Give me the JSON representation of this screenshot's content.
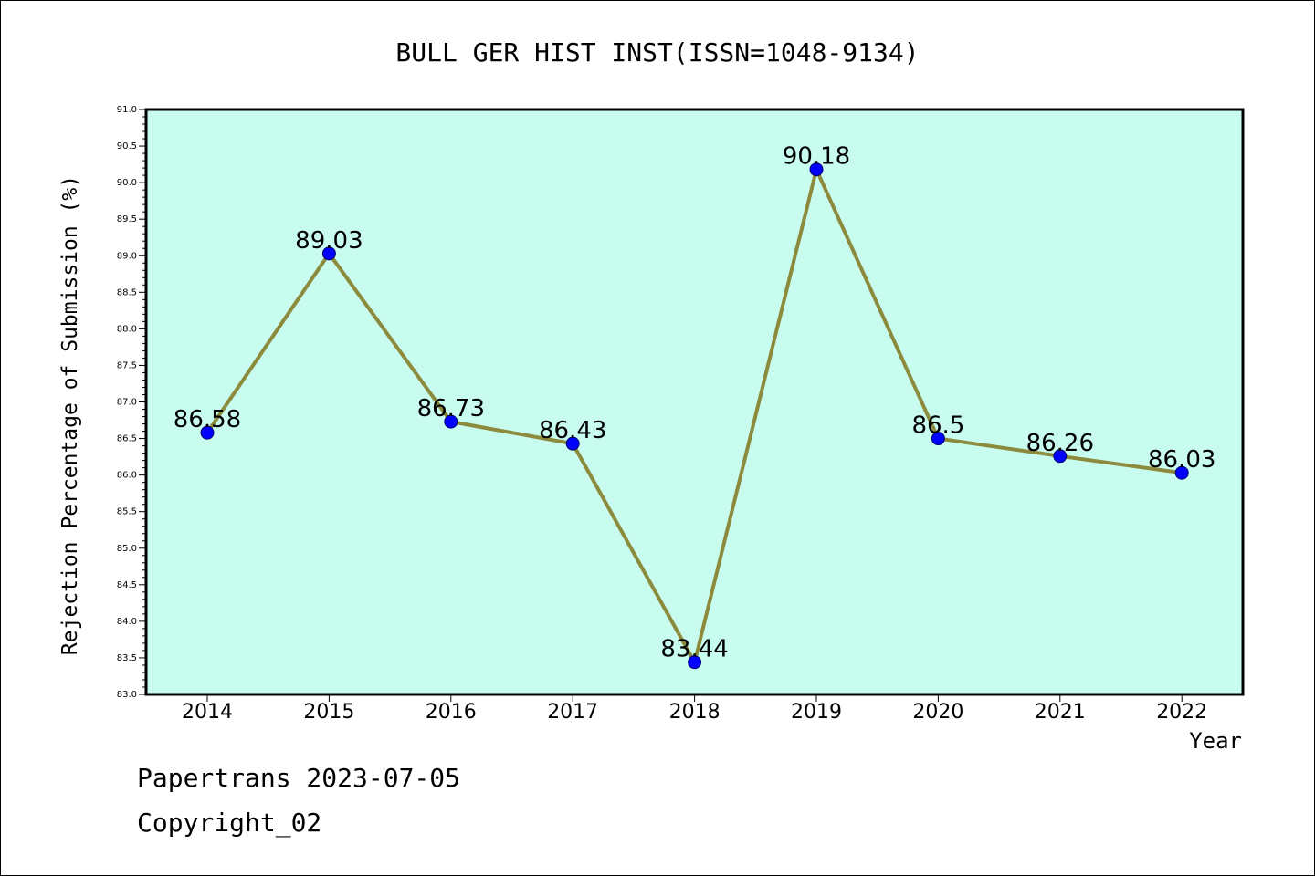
{
  "chart_data": {
    "type": "line",
    "title": "BULL GER HIST INST(ISSN=1048-9134)",
    "xlabel": "Year",
    "ylabel": "Rejection Percentage of Submission (%)",
    "categories": [
      "2014",
      "2015",
      "2016",
      "2017",
      "2018",
      "2019",
      "2020",
      "2021",
      "2022"
    ],
    "series": [
      {
        "values": [
          86.58,
          89.03,
          86.73,
          86.43,
          83.44,
          90.18,
          86.5,
          86.26,
          86.03
        ]
      }
    ],
    "data_labels": [
      "86.58",
      "89.03",
      "86.73",
      "86.43",
      "83.44",
      "90.18",
      "86.5",
      "86.26",
      "86.03"
    ],
    "ylim": [
      83.0,
      91.0
    ],
    "yticks": [
      "83.0",
      "83.5",
      "84.0",
      "84.5",
      "85.0",
      "85.5",
      "86.0",
      "86.5",
      "87.0",
      "87.5",
      "88.0",
      "88.5",
      "89.0",
      "89.5",
      "90.0",
      "90.5",
      "91.0"
    ],
    "grid": false,
    "colors": {
      "plot_background": "#c8fcee",
      "line": "#8c8a3c",
      "marker": "#0000ff",
      "marker_edge": "#00006e"
    }
  },
  "footer": {
    "date_line": "Papertrans 2023-07-05",
    "copyright": "Copyright_02"
  }
}
